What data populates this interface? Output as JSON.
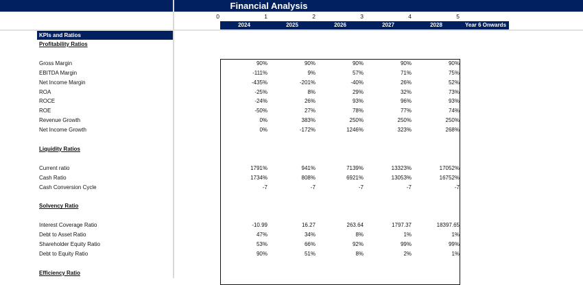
{
  "header": {
    "title": "Financial Analysis"
  },
  "period_indices": [
    "0",
    "1",
    "2",
    "3",
    "4",
    "5"
  ],
  "years": [
    "2024",
    "2025",
    "2026",
    "2027",
    "2028",
    "Year 6 Onwards"
  ],
  "section_title": "KPIs and Ratios",
  "groups": [
    {
      "title": "Profitability Ratios",
      "rows": [
        {
          "label": "Gross Margin",
          "values": [
            "90%",
            "90%",
            "90%",
            "90%",
            "90%"
          ]
        },
        {
          "label": "EBITDA Margin",
          "values": [
            "-111%",
            "9%",
            "57%",
            "71%",
            "75%"
          ]
        },
        {
          "label": "Net Income Margin",
          "values": [
            "-435%",
            "-201%",
            "-40%",
            "26%",
            "52%"
          ]
        },
        {
          "label": "ROA",
          "values": [
            "-25%",
            "8%",
            "29%",
            "32%",
            "73%"
          ]
        },
        {
          "label": "ROCE",
          "values": [
            "-24%",
            "26%",
            "93%",
            "96%",
            "93%"
          ]
        },
        {
          "label": "ROE",
          "values": [
            "-50%",
            "27%",
            "78%",
            "77%",
            "74%"
          ]
        },
        {
          "label": "Revenue Growth",
          "values": [
            "0%",
            "383%",
            "250%",
            "250%",
            "250%"
          ]
        },
        {
          "label": "Net Income Growth",
          "values": [
            "0%",
            "-172%",
            "1246%",
            "323%",
            "268%"
          ]
        }
      ]
    },
    {
      "title": "Liquidity Ratios",
      "rows": [
        {
          "label": "Current ratio",
          "values": [
            "1791%",
            "941%",
            "7139%",
            "13323%",
            "17052%"
          ]
        },
        {
          "label": "Cash Ratio",
          "values": [
            "1734%",
            "808%",
            "6921%",
            "13053%",
            "16752%"
          ]
        },
        {
          "label": "Cash Conversion Cycle",
          "values": [
            "-7",
            "-7",
            "-7",
            "-7",
            "-7"
          ]
        }
      ]
    },
    {
      "title": "Solvency Ratio",
      "rows": [
        {
          "label": "Interest Coverage Ratio",
          "values": [
            "-10.99",
            "16.27",
            "263.64",
            "1797.37",
            "18397.65"
          ]
        },
        {
          "label": "Debt to Asset Ratio",
          "values": [
            "47%",
            "34%",
            "8%",
            "1%",
            "1%"
          ]
        },
        {
          "label": "Shareholder Equity Ratio",
          "values": [
            "53%",
            "66%",
            "92%",
            "99%",
            "99%"
          ]
        },
        {
          "label": "Debt to Equity Ratio",
          "values": [
            "90%",
            "51%",
            "8%",
            "2%",
            "1%"
          ]
        }
      ]
    },
    {
      "title": "Efficiency Ratio",
      "rows": []
    }
  ]
}
